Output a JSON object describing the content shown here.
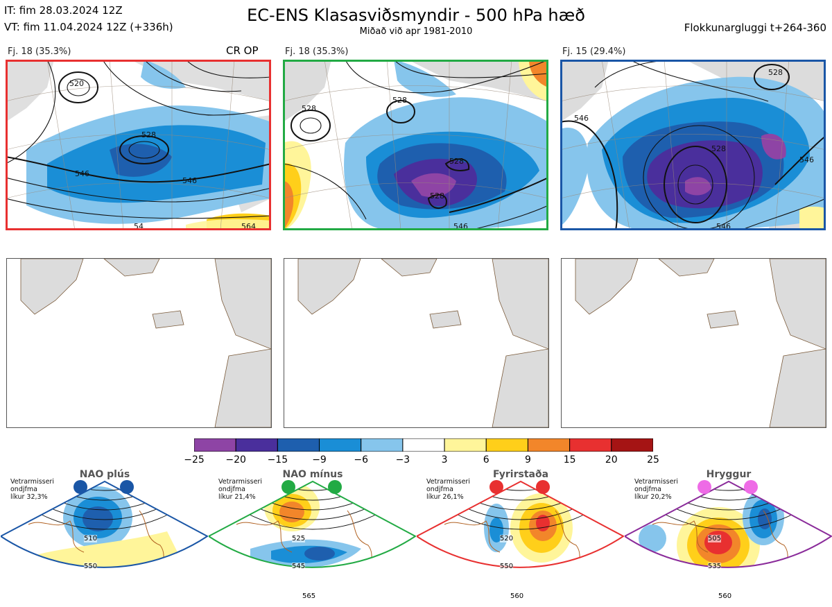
{
  "header": {
    "it_line": "IT: fim 28.03.2024 12Z",
    "vt_line": "VT: fim 11.04.2024 12Z  (+336h)",
    "title": "EC-ENS Klasasviðsmyndir - 500 hPa hæð",
    "subtitle": "Miðað við apr 1981-2010",
    "window_label": "Flokkunargluggi t+264-360"
  },
  "clusters": [
    {
      "label": "Fj. 18 (35.3%)",
      "tag": "CR OP",
      "border_color": "#e83030",
      "contours": [
        "520",
        "528",
        "546",
        "546",
        "564",
        "54"
      ]
    },
    {
      "label": "Fj. 18 (35.3%)",
      "tag": "",
      "border_color": "#22aa44",
      "contours": [
        "528",
        "528",
        "528",
        "528",
        "546"
      ]
    },
    {
      "label": "Fj. 15 (29.4%)",
      "tag": "",
      "border_color": "#1a56a6",
      "contours": [
        "546",
        "528",
        "528",
        "546",
        "546"
      ]
    }
  ],
  "colorbar": {
    "colors": [
      "#8e44a5",
      "#4a2f9c",
      "#1e5fae",
      "#1a8ed6",
      "#86c5ec",
      "#ffffff",
      "#fff59a",
      "#ffcf1a",
      "#f2862a",
      "#e83030",
      "#a51414"
    ],
    "ticks": [
      "−25",
      "−20",
      "−15",
      "−9",
      "−6",
      "−3",
      "3",
      "6",
      "9",
      "15",
      "20",
      "25"
    ]
  },
  "regimes": [
    {
      "name": "NAO plús",
      "note_lines": [
        "Vetrarmisseri",
        "ondjfma",
        "líkur 32,3%"
      ],
      "color": "#1a56a6",
      "dot_color": "#1a56a6",
      "contours": [
        "510",
        "550"
      ]
    },
    {
      "name": "NAO mínus",
      "note_lines": [
        "Vetrarmisseri",
        "ondjfma",
        "líkur 21,4%"
      ],
      "color": "#22aa44",
      "dot_color": "#22aa44",
      "contours": [
        "525",
        "545",
        "565"
      ]
    },
    {
      "name": "Fyrirstaða",
      "note_lines": [
        "Vetrarmisseri",
        "ondjfma",
        "líkur 26,1%"
      ],
      "color": "#e83030",
      "dot_color": "#e83030",
      "contours": [
        "520",
        "550",
        "560"
      ]
    },
    {
      "name": "Hryggur",
      "note_lines": [
        "Vetrarmisseri",
        "ondjfma",
        "líkur 20,2%"
      ],
      "color": "#8a2b9a",
      "dot_color": "#ee6be6",
      "contours": [
        "505",
        "535",
        "560"
      ]
    }
  ]
}
